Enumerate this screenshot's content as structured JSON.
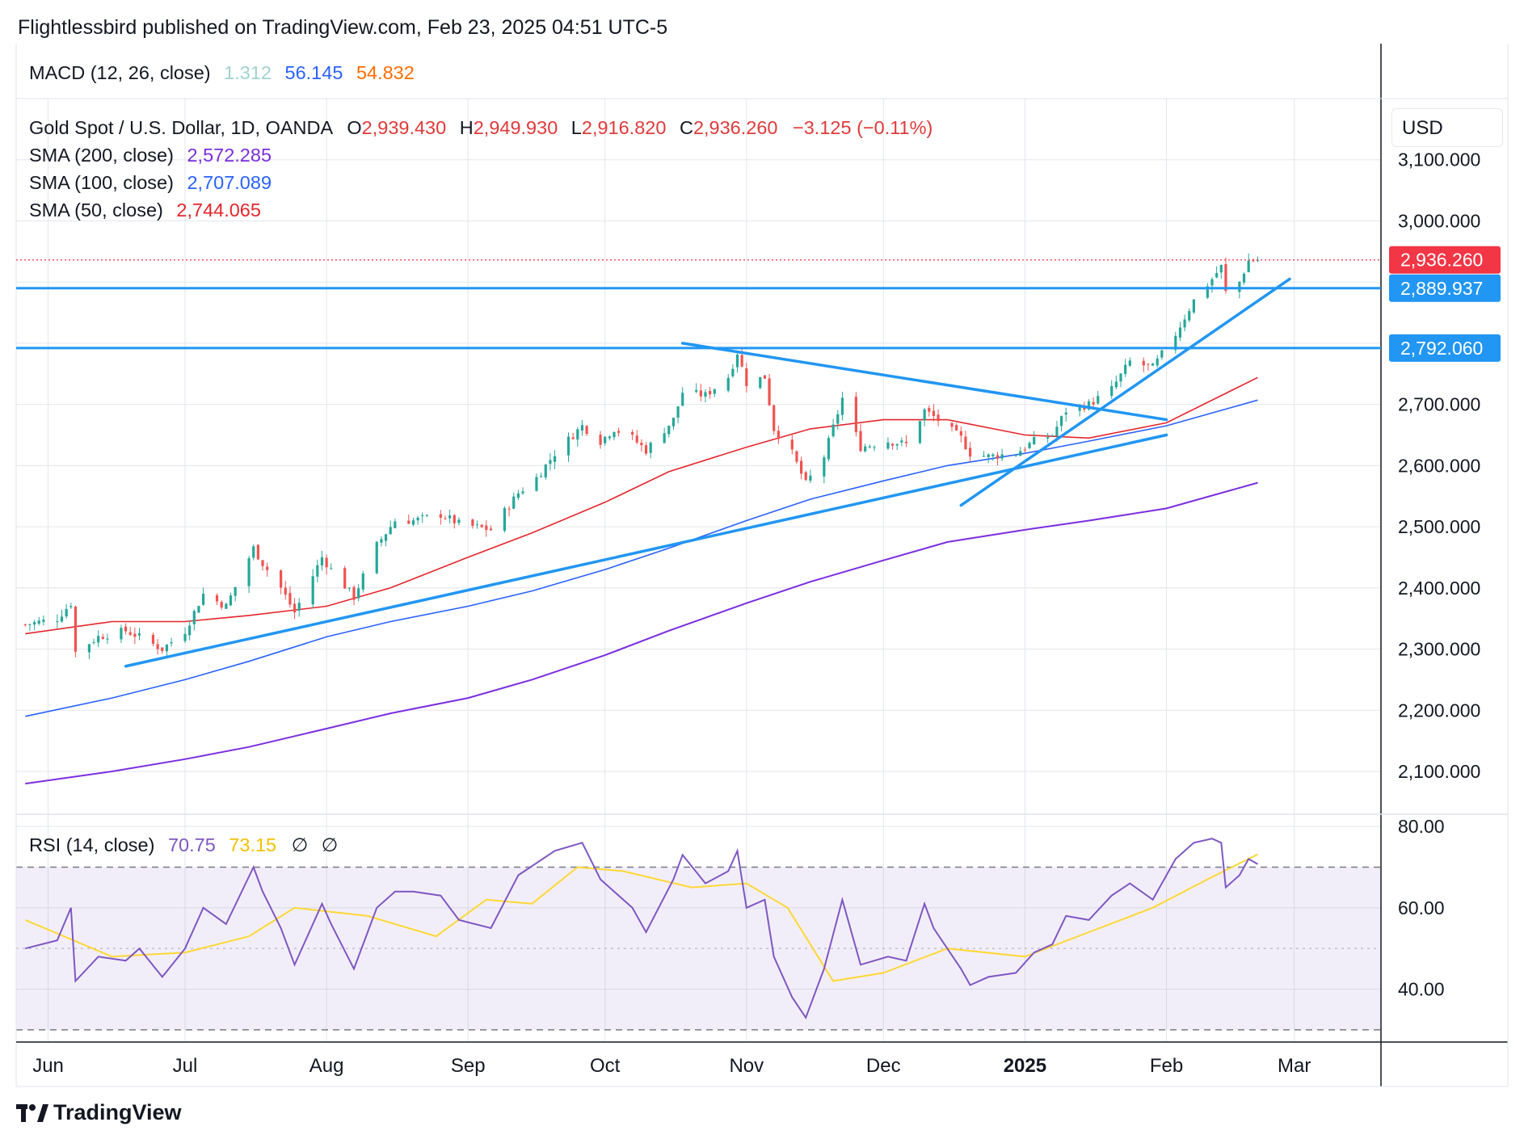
{
  "header": {
    "publisher": "Flightlessbird published on TradingView.com, Feb 23, 2025 04:51 UTC-5"
  },
  "macd_legend": {
    "label": "MACD (12, 26, close)",
    "v1": "1.312",
    "v2": "56.145",
    "v3": "54.832",
    "colors": {
      "v1": "#9fd3cf",
      "v2": "#2962ff",
      "v3": "#ff6d00"
    }
  },
  "main_legend": {
    "symbol": "Gold Spot / U.S. Dollar, 1D, OANDA",
    "o_label": "O",
    "o": "2,939.430",
    "h_label": "H",
    "h": "2,949.930",
    "l_label": "L",
    "l": "2,916.820",
    "c_label": "C",
    "c": "2,936.260",
    "change": "−3.125 (−0.11%)",
    "sma200_label": "SMA (200, close)",
    "sma200": "2,572.285",
    "sma100_label": "SMA (100, close)",
    "sma100": "2,707.089",
    "sma50_label": "SMA (50, close)",
    "sma50": "2,744.065"
  },
  "currency": "USD",
  "rsi_legend": {
    "label": "RSI (14, close)",
    "rsi": "70.75",
    "rsi_ma": "73.15",
    "extra1": "∅",
    "extra2": "∅"
  },
  "brand": {
    "name": "TradingView"
  },
  "colors": {
    "up": "#26a69a",
    "down": "#ef5350",
    "sma50": "#e5262c",
    "sma100": "#2962ff",
    "sma200": "#7b2ee0",
    "trend": "#2196f3",
    "rsi": "#7e57c2",
    "rsi_ma": "#fdd835",
    "last_price": "#f23645",
    "hline_label": "#2196f3",
    "grid": "#e3e6ec"
  },
  "chart_data": {
    "type": "candlestick",
    "symbol": "Gold Spot / U.S. Dollar",
    "interval": "1D",
    "y_axis": {
      "ticks": [
        3100,
        3000,
        2900,
        2800,
        2700,
        2600,
        2500,
        2400,
        2300,
        2200,
        2100
      ],
      "tick_labels": [
        "3,100.000",
        "3,000.000",
        "2,700.000",
        "2,600.000",
        "2,500.000",
        "2,400.000",
        "2,300.000",
        "2,200.000",
        "2,100.000"
      ],
      "range": [
        2030,
        3200
      ]
    },
    "x_axis": {
      "tick_labels": [
        "Jun",
        "Jul",
        "Aug",
        "Sep",
        "Oct",
        "Nov",
        "Dec",
        "2025",
        "Feb",
        "Mar"
      ],
      "tick_dates": [
        "2024-06-01",
        "2024-07-01",
        "2024-08-01",
        "2024-09-01",
        "2024-10-01",
        "2024-11-01",
        "2024-12-01",
        "2025-01-01",
        "2025-02-01",
        "2025-03-01"
      ],
      "range": [
        "2024-05-25",
        "2025-03-20"
      ]
    },
    "price_labels": [
      {
        "text": "2,936.260",
        "value": 2936.26,
        "kind": "last"
      },
      {
        "text": "2,889.937",
        "value": 2889.937,
        "kind": "hline"
      },
      {
        "text": "2,792.060",
        "value": 2792.06,
        "kind": "hline"
      }
    ],
    "horizontal_lines": [
      2889.937,
      2792.06
    ],
    "trend_lines": [
      {
        "name": "rising support",
        "from": [
          "2024-06-18",
          2272
        ],
        "to": [
          "2025-02-01",
          2650
        ]
      },
      {
        "name": "falling resistance",
        "from": [
          "2024-10-18",
          2800
        ],
        "to": [
          "2025-02-01",
          2675
        ]
      },
      {
        "name": "steep rising support",
        "from": [
          "2024-12-18",
          2535
        ],
        "to": [
          "2025-02-28",
          2905
        ]
      }
    ],
    "close_path": [
      [
        "2024-05-27",
        2340
      ],
      [
        "2024-06-03",
        2350
      ],
      [
        "2024-06-06",
        2375
      ],
      [
        "2024-06-07",
        2295
      ],
      [
        "2024-06-12",
        2320
      ],
      [
        "2024-06-18",
        2330
      ],
      [
        "2024-06-21",
        2320
      ],
      [
        "2024-06-26",
        2300
      ],
      [
        "2024-07-01",
        2330
      ],
      [
        "2024-07-05",
        2390
      ],
      [
        "2024-07-10",
        2370
      ],
      [
        "2024-07-16",
        2465
      ],
      [
        "2024-07-18",
        2440
      ],
      [
        "2024-07-22",
        2400
      ],
      [
        "2024-07-25",
        2360
      ],
      [
        "2024-07-31",
        2450
      ],
      [
        "2024-08-02",
        2430
      ],
      [
        "2024-08-07",
        2385
      ],
      [
        "2024-08-12",
        2470
      ],
      [
        "2024-08-16",
        2510
      ],
      [
        "2024-08-20",
        2510
      ],
      [
        "2024-08-26",
        2520
      ],
      [
        "2024-08-30",
        2505
      ],
      [
        "2024-09-06",
        2495
      ],
      [
        "2024-09-12",
        2555
      ],
      [
        "2024-09-16",
        2580
      ],
      [
        "2024-09-20",
        2620
      ],
      [
        "2024-09-26",
        2665
      ],
      [
        "2024-09-30",
        2640
      ],
      [
        "2024-10-03",
        2660
      ],
      [
        "2024-10-07",
        2645
      ],
      [
        "2024-10-10",
        2625
      ],
      [
        "2024-10-16",
        2675
      ],
      [
        "2024-10-18",
        2720
      ],
      [
        "2024-10-23",
        2715
      ],
      [
        "2024-10-28",
        2745
      ],
      [
        "2024-10-30",
        2785
      ],
      [
        "2024-11-01",
        2735
      ],
      [
        "2024-11-05",
        2745
      ],
      [
        "2024-11-07",
        2660
      ],
      [
        "2024-11-11",
        2620
      ],
      [
        "2024-11-14",
        2570
      ],
      [
        "2024-11-18",
        2615
      ],
      [
        "2024-11-22",
        2710
      ],
      [
        "2024-11-26",
        2630
      ],
      [
        "2024-12-02",
        2640
      ],
      [
        "2024-12-06",
        2635
      ],
      [
        "2024-12-10",
        2690
      ],
      [
        "2024-12-12",
        2680
      ],
      [
        "2024-12-18",
        2645
      ],
      [
        "2024-12-20",
        2620
      ],
      [
        "2024-12-24",
        2615
      ],
      [
        "2024-12-30",
        2620
      ],
      [
        "2025-01-03",
        2640
      ],
      [
        "2025-01-07",
        2650
      ],
      [
        "2025-01-10",
        2690
      ],
      [
        "2025-01-15",
        2700
      ],
      [
        "2025-01-20",
        2725
      ],
      [
        "2025-01-24",
        2770
      ],
      [
        "2025-01-29",
        2760
      ],
      [
        "2025-02-03",
        2815
      ],
      [
        "2025-02-07",
        2870
      ],
      [
        "2025-02-11",
        2905
      ],
      [
        "2025-02-13",
        2925
      ],
      [
        "2025-02-14",
        2883
      ],
      [
        "2025-02-17",
        2900
      ],
      [
        "2025-02-19",
        2935
      ],
      [
        "2025-02-21",
        2936
      ]
    ],
    "sma50": [
      [
        "2024-05-27",
        2325
      ],
      [
        "2024-06-15",
        2345
      ],
      [
        "2024-07-01",
        2345
      ],
      [
        "2024-07-15",
        2355
      ],
      [
        "2024-08-01",
        2370
      ],
      [
        "2024-08-15",
        2400
      ],
      [
        "2024-09-01",
        2450
      ],
      [
        "2024-09-15",
        2490
      ],
      [
        "2024-10-01",
        2540
      ],
      [
        "2024-10-15",
        2590
      ],
      [
        "2024-11-01",
        2630
      ],
      [
        "2024-11-15",
        2660
      ],
      [
        "2024-12-01",
        2675
      ],
      [
        "2024-12-15",
        2675
      ],
      [
        "2025-01-01",
        2650
      ],
      [
        "2025-01-15",
        2645
      ],
      [
        "2025-02-01",
        2670
      ],
      [
        "2025-02-21",
        2744
      ]
    ],
    "sma100": [
      [
        "2024-05-27",
        2190
      ],
      [
        "2024-06-15",
        2220
      ],
      [
        "2024-07-01",
        2250
      ],
      [
        "2024-07-15",
        2280
      ],
      [
        "2024-08-01",
        2320
      ],
      [
        "2024-08-15",
        2345
      ],
      [
        "2024-09-01",
        2370
      ],
      [
        "2024-09-15",
        2395
      ],
      [
        "2024-10-01",
        2430
      ],
      [
        "2024-10-15",
        2465
      ],
      [
        "2024-11-01",
        2510
      ],
      [
        "2024-11-15",
        2545
      ],
      [
        "2024-12-01",
        2575
      ],
      [
        "2024-12-15",
        2600
      ],
      [
        "2025-01-01",
        2620
      ],
      [
        "2025-01-15",
        2640
      ],
      [
        "2025-02-01",
        2665
      ],
      [
        "2025-02-21",
        2707
      ]
    ],
    "sma200": [
      [
        "2024-05-27",
        2080
      ],
      [
        "2024-06-15",
        2100
      ],
      [
        "2024-07-01",
        2120
      ],
      [
        "2024-07-15",
        2140
      ],
      [
        "2024-08-01",
        2170
      ],
      [
        "2024-08-15",
        2195
      ],
      [
        "2024-09-01",
        2220
      ],
      [
        "2024-09-15",
        2250
      ],
      [
        "2024-10-01",
        2290
      ],
      [
        "2024-10-15",
        2330
      ],
      [
        "2024-11-01",
        2375
      ],
      [
        "2024-11-15",
        2410
      ],
      [
        "2024-12-01",
        2445
      ],
      [
        "2024-12-15",
        2475
      ],
      [
        "2025-01-01",
        2495
      ],
      [
        "2025-01-15",
        2510
      ],
      [
        "2025-02-01",
        2530
      ],
      [
        "2025-02-21",
        2572
      ]
    ],
    "rsi_panel": {
      "ticks": [
        80,
        60,
        40
      ],
      "tick_labels": [
        "80.00",
        "60.00",
        "40.00"
      ],
      "bands": [
        70,
        50,
        30
      ],
      "range": [
        27,
        83
      ],
      "rsi": [
        [
          "2024-05-27",
          50
        ],
        [
          "2024-06-03",
          52
        ],
        [
          "2024-06-06",
          60
        ],
        [
          "2024-06-07",
          42
        ],
        [
          "2024-06-12",
          48
        ],
        [
          "2024-06-18",
          47
        ],
        [
          "2024-06-21",
          50
        ],
        [
          "2024-06-26",
          43
        ],
        [
          "2024-07-01",
          50
        ],
        [
          "2024-07-05",
          60
        ],
        [
          "2024-07-10",
          56
        ],
        [
          "2024-07-16",
          70
        ],
        [
          "2024-07-18",
          64
        ],
        [
          "2024-07-22",
          55
        ],
        [
          "2024-07-25",
          46
        ],
        [
          "2024-07-31",
          61
        ],
        [
          "2024-08-02",
          56
        ],
        [
          "2024-08-07",
          45
        ],
        [
          "2024-08-12",
          60
        ],
        [
          "2024-08-16",
          64
        ],
        [
          "2024-08-20",
          64
        ],
        [
          "2024-08-26",
          63
        ],
        [
          "2024-08-30",
          57
        ],
        [
          "2024-09-06",
          55
        ],
        [
          "2024-09-12",
          68
        ],
        [
          "2024-09-16",
          71
        ],
        [
          "2024-09-20",
          74
        ],
        [
          "2024-09-26",
          76
        ],
        [
          "2024-09-30",
          67
        ],
        [
          "2024-10-03",
          64
        ],
        [
          "2024-10-07",
          60
        ],
        [
          "2024-10-10",
          54
        ],
        [
          "2024-10-16",
          67
        ],
        [
          "2024-10-18",
          73
        ],
        [
          "2024-10-23",
          66
        ],
        [
          "2024-10-28",
          69
        ],
        [
          "2024-10-30",
          74
        ],
        [
          "2024-11-01",
          60
        ],
        [
          "2024-11-05",
          62
        ],
        [
          "2024-11-07",
          48
        ],
        [
          "2024-11-11",
          38
        ],
        [
          "2024-11-14",
          33
        ],
        [
          "2024-11-18",
          45
        ],
        [
          "2024-11-22",
          62
        ],
        [
          "2024-11-26",
          46
        ],
        [
          "2024-12-02",
          48
        ],
        [
          "2024-12-06",
          47
        ],
        [
          "2024-12-10",
          61
        ],
        [
          "2024-12-12",
          55
        ],
        [
          "2024-12-18",
          45
        ],
        [
          "2024-12-20",
          41
        ],
        [
          "2024-12-24",
          43
        ],
        [
          "2024-12-30",
          44
        ],
        [
          "2025-01-03",
          49
        ],
        [
          "2025-01-07",
          51
        ],
        [
          "2025-01-10",
          58
        ],
        [
          "2025-01-15",
          57
        ],
        [
          "2025-01-20",
          63
        ],
        [
          "2025-01-24",
          66
        ],
        [
          "2025-01-29",
          62
        ],
        [
          "2025-02-03",
          72
        ],
        [
          "2025-02-07",
          76
        ],
        [
          "2025-02-11",
          77
        ],
        [
          "2025-02-13",
          76
        ],
        [
          "2025-02-14",
          65
        ],
        [
          "2025-02-17",
          68
        ],
        [
          "2025-02-19",
          72
        ],
        [
          "2025-02-21",
          70.75
        ]
      ],
      "rsi_ma": [
        [
          "2024-05-27",
          57
        ],
        [
          "2024-06-15",
          48
        ],
        [
          "2024-07-01",
          49
        ],
        [
          "2024-07-15",
          53
        ],
        [
          "2024-07-25",
          60
        ],
        [
          "2024-08-10",
          58
        ],
        [
          "2024-08-25",
          53
        ],
        [
          "2024-09-05",
          62
        ],
        [
          "2024-09-15",
          61
        ],
        [
          "2024-09-25",
          70
        ],
        [
          "2024-10-05",
          69
        ],
        [
          "2024-10-20",
          65
        ],
        [
          "2024-11-01",
          66
        ],
        [
          "2024-11-10",
          60
        ],
        [
          "2024-11-20",
          42
        ],
        [
          "2024-12-01",
          44
        ],
        [
          "2024-12-15",
          50
        ],
        [
          "2025-01-01",
          48
        ],
        [
          "2025-01-15",
          54
        ],
        [
          "2025-01-29",
          60
        ],
        [
          "2025-02-10",
          67
        ],
        [
          "2025-02-21",
          73.15
        ]
      ]
    }
  }
}
